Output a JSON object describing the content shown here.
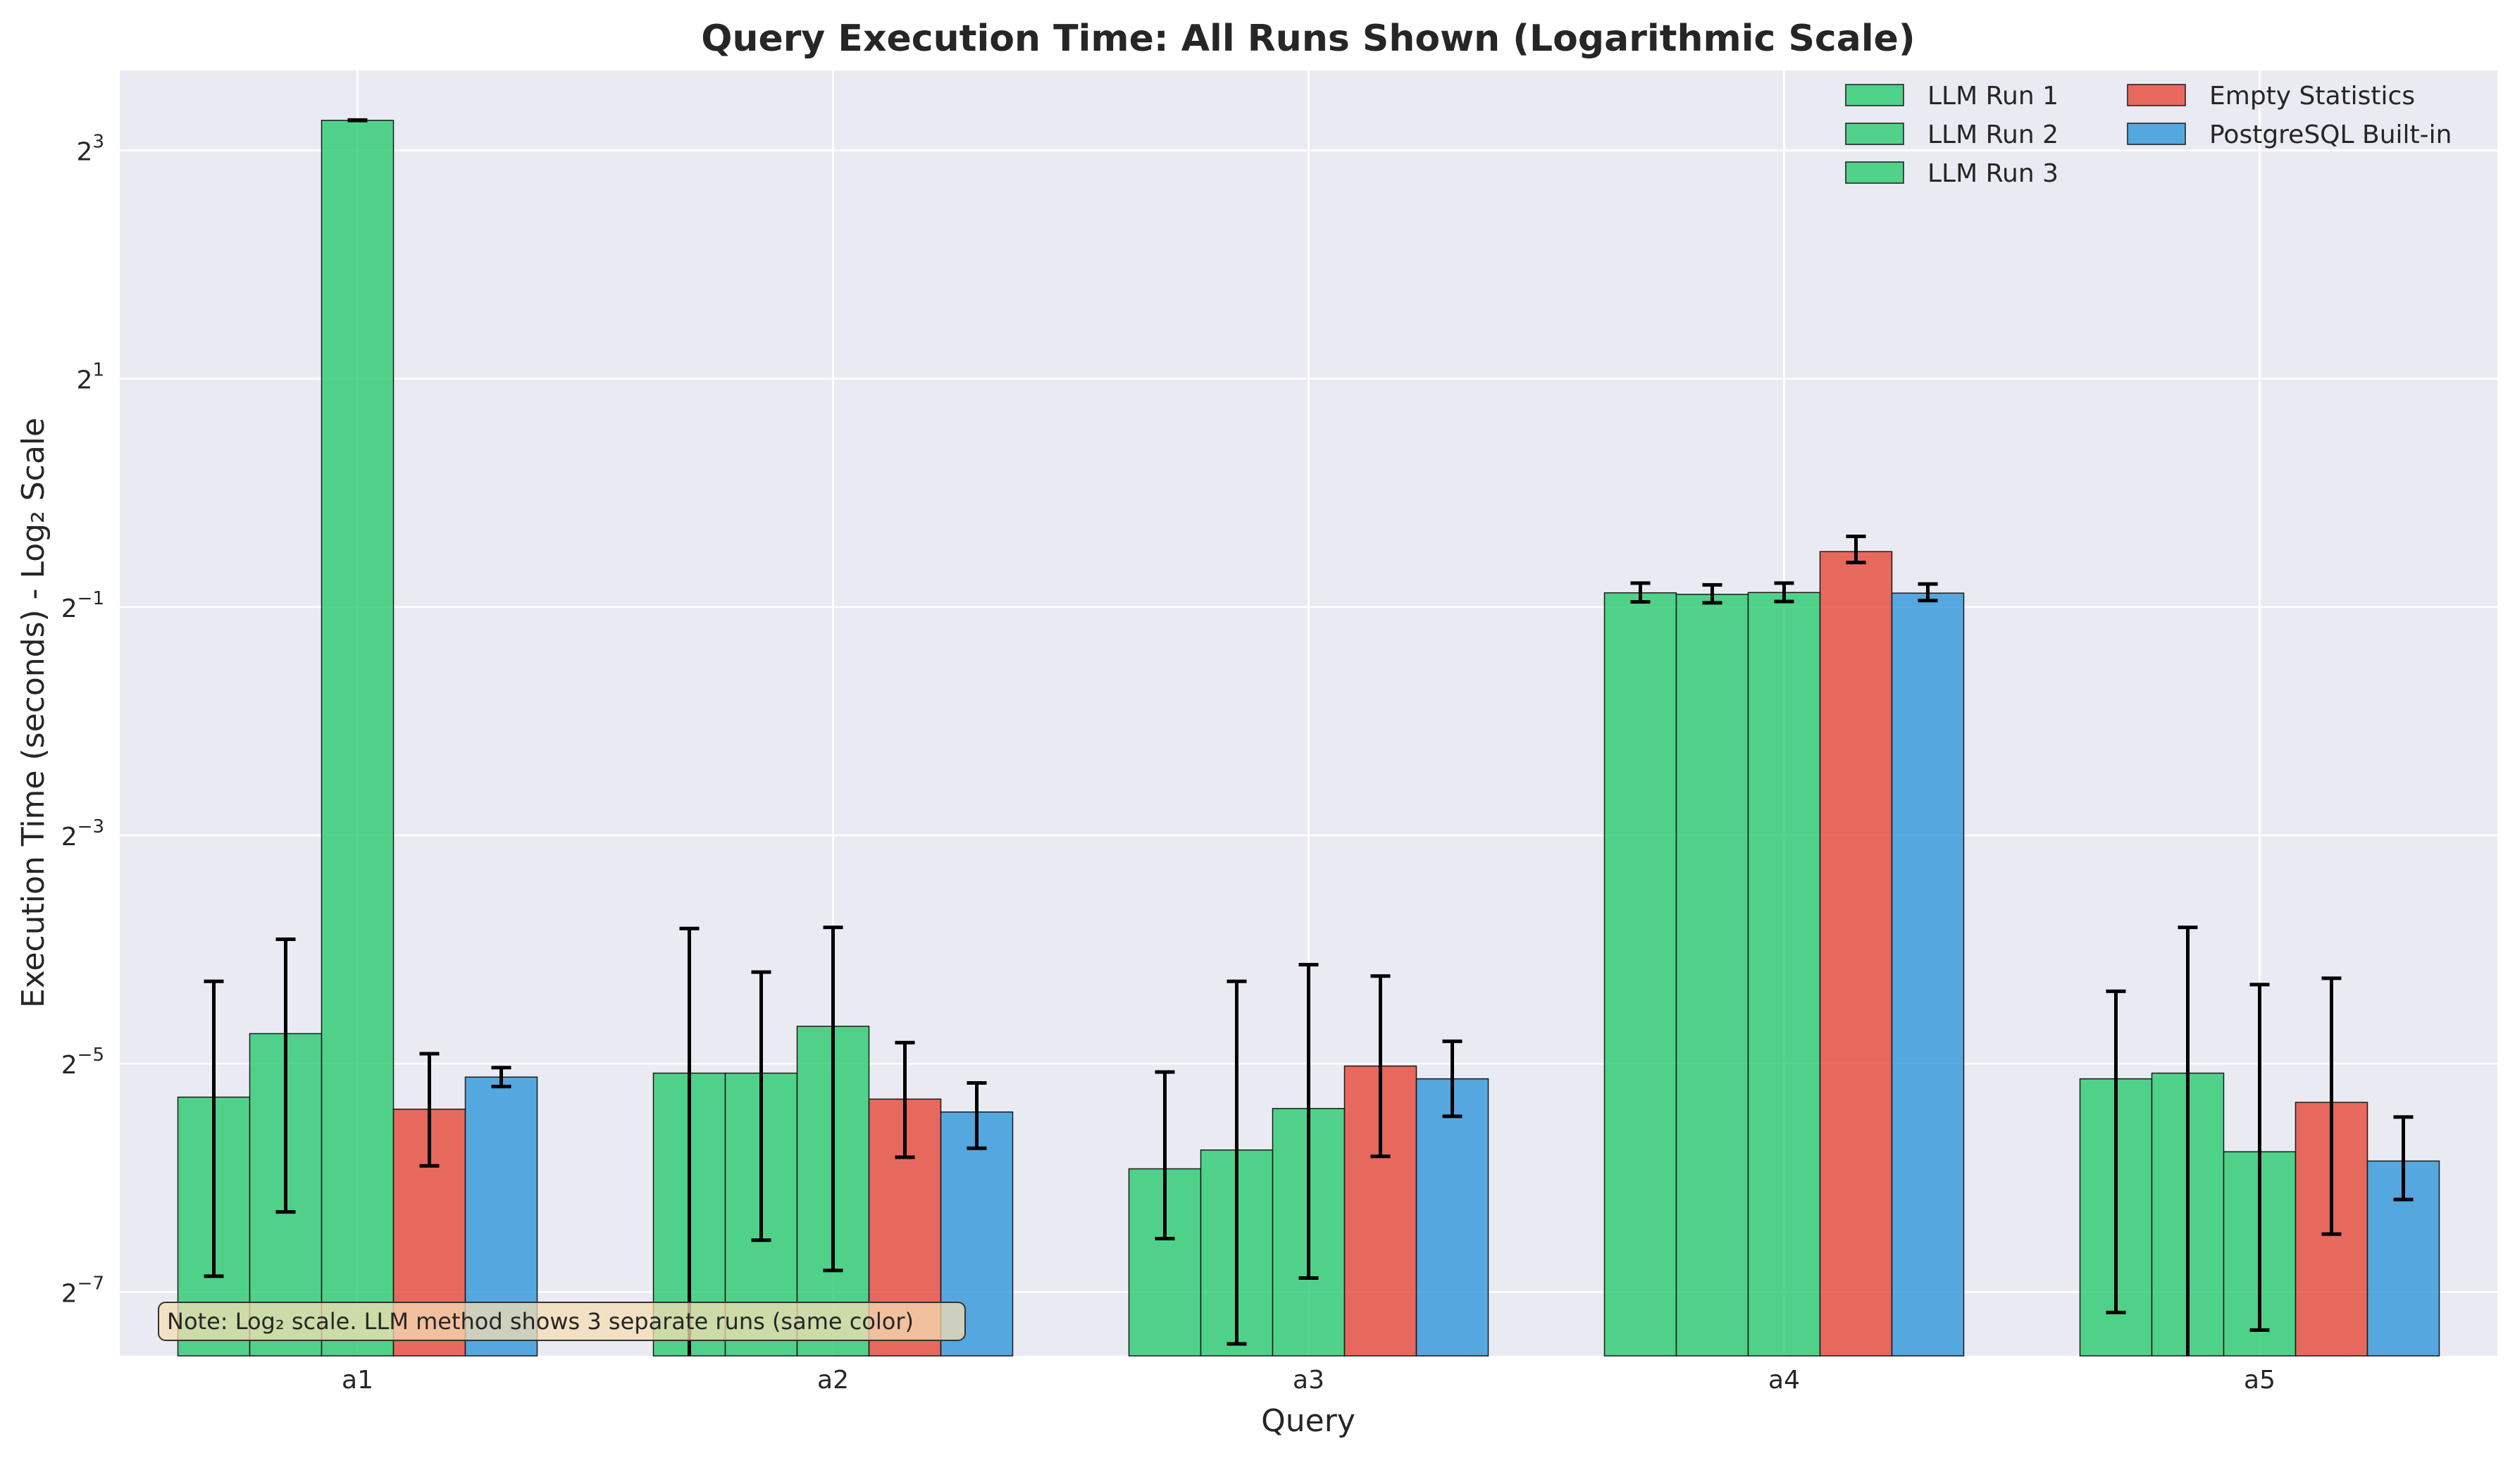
{
  "chart_data": {
    "type": "bar",
    "title": "Query Execution Time: All Runs Shown (Logarithmic Scale)",
    "xlabel": "Query",
    "ylabel": "Execution Time (seconds) - Log₂ Scale",
    "log_base": 2,
    "ylim": [
      0.0053,
      13.0
    ],
    "yticks": [
      {
        "value": 0.0078125,
        "base": "2",
        "exp": "−7"
      },
      {
        "value": 0.03125,
        "base": "2",
        "exp": "−5"
      },
      {
        "value": 0.125,
        "base": "2",
        "exp": "−3"
      },
      {
        "value": 0.5,
        "base": "2",
        "exp": "−1"
      },
      {
        "value": 2,
        "base": "2",
        "exp": "1"
      },
      {
        "value": 8,
        "base": "2",
        "exp": "3"
      }
    ],
    "categories": [
      "a1",
      "a2",
      "a3",
      "a4",
      "a5"
    ],
    "grid": true,
    "legend_position": "top-right",
    "series": [
      {
        "name": "LLM Run 1",
        "color": "#2ecc71",
        "values": [
          0.0255,
          0.0295,
          0.0165,
          0.545,
          0.0285
        ],
        "err_low": [
          0.0086,
          0.0036,
          0.0108,
          0.516,
          0.0069
        ],
        "err_high": [
          0.0515,
          0.071,
          0.0297,
          0.578,
          0.0485
        ]
      },
      {
        "name": "LLM Run 2",
        "color": "#2ecc71",
        "values": [
          0.0375,
          0.0295,
          0.0185,
          0.54,
          0.0295
        ],
        "err_low": [
          0.0127,
          0.0107,
          0.0057,
          0.513,
          0.0036
        ],
        "err_high": [
          0.0665,
          0.0545,
          0.0515,
          0.572,
          0.0715
        ]
      },
      {
        "name": "LLM Run 3",
        "color": "#2ecc71",
        "values": [
          9.6,
          0.0392,
          0.0238,
          0.546,
          0.0183
        ],
        "err_low": [
          9.59,
          0.0089,
          0.0085,
          0.517,
          0.0062
        ],
        "err_high": [
          9.62,
          0.0715,
          0.057,
          0.578,
          0.0505
        ]
      },
      {
        "name": "Empty Statistics",
        "color": "#e74c3c",
        "values": [
          0.0237,
          0.0252,
          0.0308,
          0.7,
          0.0247
        ],
        "err_low": [
          0.0168,
          0.0177,
          0.0178,
          0.655,
          0.0111
        ],
        "err_high": [
          0.0332,
          0.0355,
          0.0532,
          0.768,
          0.0525
        ]
      },
      {
        "name": "PostgreSQL Built-in",
        "color": "#3498db",
        "values": [
          0.0288,
          0.0233,
          0.0285,
          0.544,
          0.0173
        ],
        "err_low": [
          0.0272,
          0.0187,
          0.0227,
          0.52,
          0.0137
        ],
        "err_high": [
          0.0305,
          0.0278,
          0.0358,
          0.575,
          0.0226
        ]
      }
    ],
    "note": "Note: Log₂ scale. LLM method shows 3 separate runs (same color)"
  }
}
